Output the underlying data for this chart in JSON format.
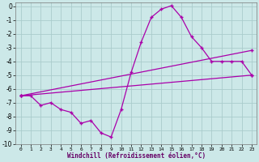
{
  "xlabel": "Windchill (Refroidissement éolien,°C)",
  "bg_color": "#cce8e8",
  "grid_color": "#aacccc",
  "line_color": "#aa00aa",
  "xlim": [
    -0.5,
    23.5
  ],
  "ylim": [
    -10,
    0.3
  ],
  "xticks": [
    0,
    1,
    2,
    3,
    4,
    5,
    6,
    7,
    8,
    9,
    10,
    11,
    12,
    13,
    14,
    15,
    16,
    17,
    18,
    19,
    20,
    21,
    22,
    23
  ],
  "yticks": [
    0,
    -1,
    -2,
    -3,
    -4,
    -5,
    -6,
    -7,
    -8,
    -9,
    -10
  ],
  "series1": [
    [
      0,
      -6.5
    ],
    [
      1,
      -6.5
    ],
    [
      2,
      -7.2
    ],
    [
      3,
      -7.0
    ],
    [
      4,
      -7.5
    ],
    [
      5,
      -7.7
    ],
    [
      6,
      -8.5
    ],
    [
      7,
      -8.3
    ],
    [
      8,
      -9.2
    ],
    [
      9,
      -9.5
    ],
    [
      10,
      -7.5
    ],
    [
      11,
      -4.8
    ],
    [
      12,
      -2.6
    ],
    [
      13,
      -0.8
    ],
    [
      14,
      -0.2
    ],
    [
      15,
      0.05
    ],
    [
      16,
      -0.8
    ],
    [
      17,
      -2.2
    ],
    [
      18,
      -3.0
    ],
    [
      19,
      -4.0
    ],
    [
      20,
      -4.0
    ],
    [
      21,
      -4.0
    ],
    [
      22,
      -4.0
    ],
    [
      23,
      -5.0
    ]
  ],
  "series2": [
    [
      0,
      -6.5
    ],
    [
      23,
      -3.2
    ]
  ],
  "series3": [
    [
      0,
      -6.5
    ],
    [
      23,
      -5.0
    ]
  ]
}
